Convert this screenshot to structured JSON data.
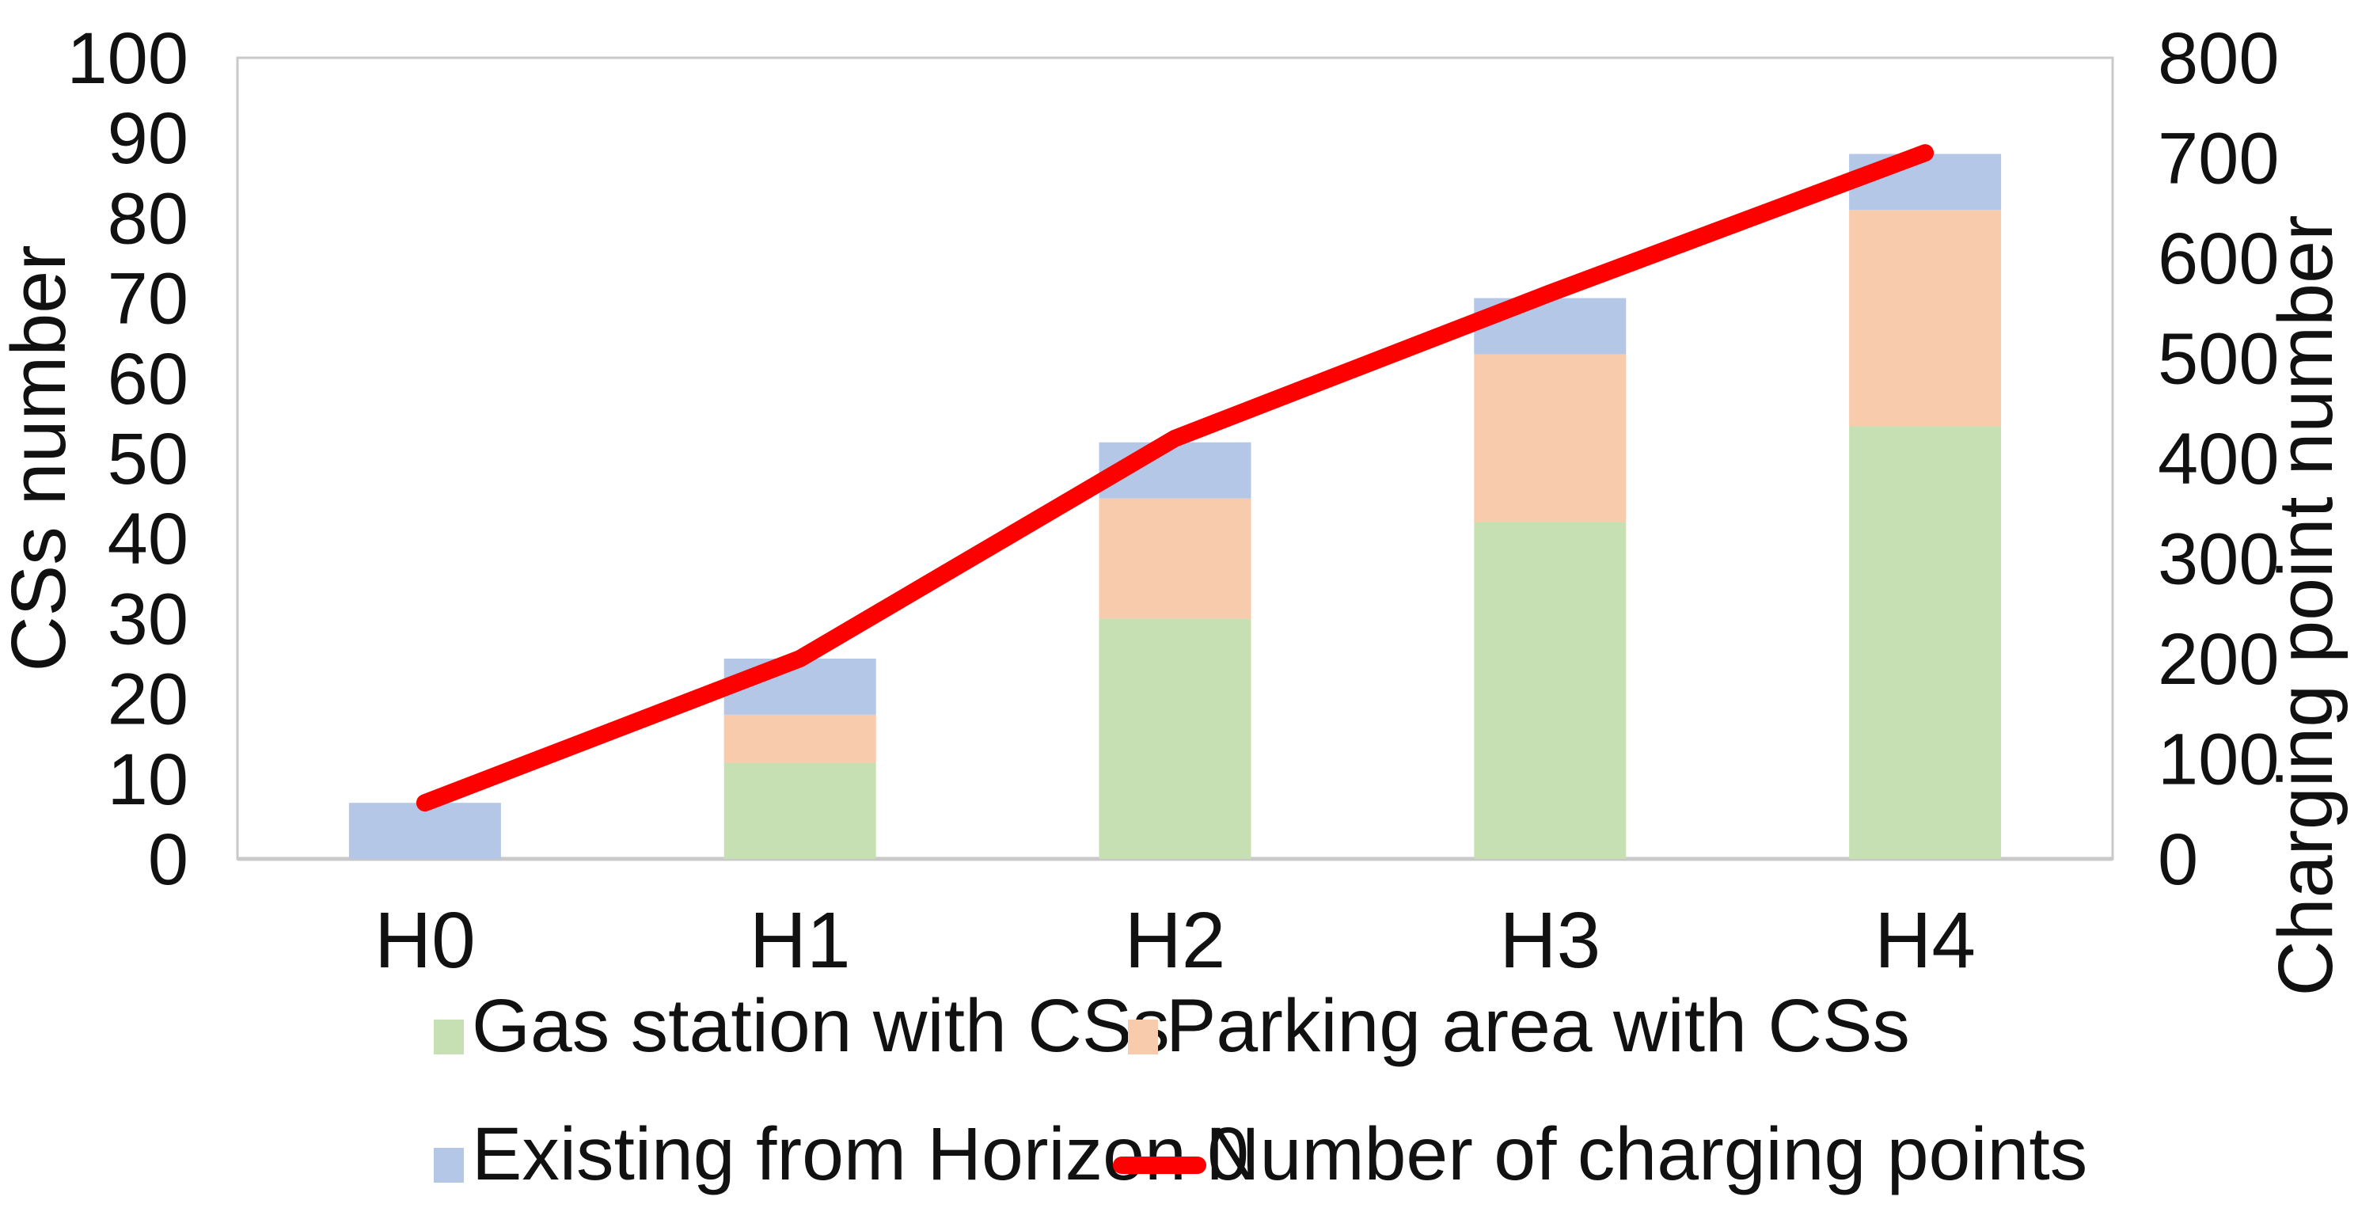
{
  "chart_data": {
    "type": "bar",
    "subtype": "stacked-bar-with-line-combo",
    "categories": [
      "H0",
      "H1",
      "H2",
      "H3",
      "H4"
    ],
    "bar_series": [
      {
        "name": "Gas station with CSs",
        "color": "#C6E0B4",
        "axis": "left",
        "values": [
          0,
          12,
          30,
          42,
          54
        ]
      },
      {
        "name": "Parking area with CSs",
        "color": "#F8CBAD",
        "axis": "left",
        "values": [
          0,
          6,
          15,
          21,
          27
        ]
      },
      {
        "name": "Existing from Horizon 0",
        "color": "#B4C7E7",
        "axis": "left",
        "values": [
          7,
          7,
          7,
          7,
          7
        ]
      }
    ],
    "line_series": {
      "name": "Number of charging points",
      "color": "#FF0000",
      "axis": "right",
      "values": [
        56,
        200,
        420,
        565,
        705
      ]
    },
    "bar_totals": [
      7,
      25,
      52,
      70,
      88
    ],
    "title": "",
    "xlabel": "",
    "ylabel_left": "CSs number",
    "ylabel_right": "Charging point number",
    "y_left": {
      "min": 0,
      "max": 100,
      "step": 10
    },
    "y_right": {
      "min": 0,
      "max": 800,
      "step": 100
    },
    "y_left_ticks": [
      0,
      10,
      20,
      30,
      40,
      50,
      60,
      70,
      80,
      90,
      100
    ],
    "y_right_ticks": [
      0,
      100,
      200,
      300,
      400,
      500,
      600,
      700,
      800
    ],
    "grid": "none",
    "legend_position": "bottom",
    "colors": {
      "plot_border": "#C9C9C9",
      "text": "#111111",
      "background": "#FFFFFF"
    }
  }
}
